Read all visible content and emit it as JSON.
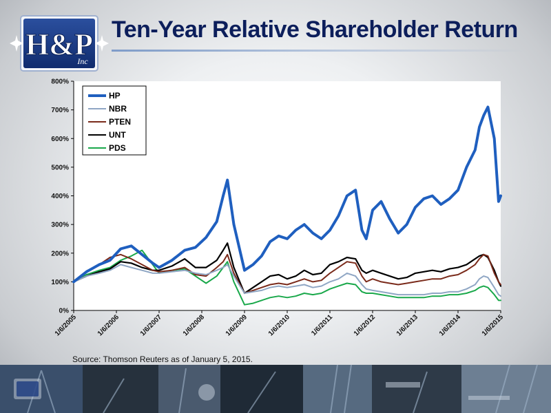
{
  "slide": {
    "title": "Ten-Year Relative Shareholder Return",
    "source": "Source: Thomson Reuters as of January 5, 2015.",
    "logo_text": "H&P",
    "logo_sub": "Inc"
  },
  "colors": {
    "title": "#0c1e5b",
    "HP": "#1f5fbf",
    "NBR": "#8fa6c4",
    "PTEN": "#7a2a1a",
    "UNT": "#000000",
    "PDS": "#19a84a"
  },
  "chart_data": {
    "type": "line",
    "title": "",
    "xlabel": "",
    "ylabel": "",
    "ylim": [
      0,
      800
    ],
    "y_ticks": [
      "0%",
      "100%",
      "200%",
      "300%",
      "400%",
      "500%",
      "600%",
      "700%",
      "800%"
    ],
    "y_tick_values": [
      0,
      100,
      200,
      300,
      400,
      500,
      600,
      700,
      800
    ],
    "x_ticks": [
      "1/6/2005",
      "1/6/2006",
      "1/6/2007",
      "1/6/2008",
      "1/6/2009",
      "1/6/2010",
      "1/6/2011",
      "1/6/2012",
      "1/6/2013",
      "1/6/2014",
      "1/6/2015"
    ],
    "x_tick_values": [
      2005.0,
      2006.0,
      2007.0,
      2008.0,
      2009.0,
      2010.0,
      2011.0,
      2012.0,
      2013.0,
      2014.0,
      2015.0
    ],
    "grid": false,
    "legend_position": "top-left",
    "series": [
      {
        "name": "HP",
        "x": [
          2005.0,
          2005.3,
          2005.6,
          2005.85,
          2006.1,
          2006.35,
          2006.6,
          2006.85,
          2007.0,
          2007.3,
          2007.6,
          2007.85,
          2008.1,
          2008.35,
          2008.5,
          2008.6,
          2008.75,
          2009.0,
          2009.2,
          2009.4,
          2009.6,
          2009.8,
          2010.0,
          2010.2,
          2010.4,
          2010.6,
          2010.8,
          2011.0,
          2011.2,
          2011.4,
          2011.6,
          2011.75,
          2011.85,
          2012.0,
          2012.2,
          2012.4,
          2012.6,
          2012.8,
          2013.0,
          2013.2,
          2013.4,
          2013.6,
          2013.8,
          2014.0,
          2014.2,
          2014.4,
          2014.5,
          2014.6,
          2014.7,
          2014.85,
          2014.95,
          2015.0
        ],
        "values": [
          100,
          135,
          160,
          175,
          215,
          225,
          195,
          165,
          150,
          175,
          210,
          220,
          255,
          310,
          400,
          455,
          300,
          140,
          160,
          190,
          240,
          260,
          250,
          280,
          300,
          270,
          250,
          280,
          330,
          400,
          420,
          280,
          250,
          350,
          380,
          320,
          270,
          300,
          360,
          390,
          400,
          370,
          390,
          420,
          500,
          560,
          640,
          680,
          710,
          600,
          380,
          400
        ]
      },
      {
        "name": "NBR",
        "x": [
          2005.0,
          2005.3,
          2005.6,
          2005.85,
          2006.1,
          2006.35,
          2006.6,
          2006.85,
          2007.0,
          2007.3,
          2007.6,
          2007.85,
          2008.1,
          2008.35,
          2008.5,
          2008.6,
          2008.75,
          2009.0,
          2009.2,
          2009.4,
          2009.6,
          2009.8,
          2010.0,
          2010.2,
          2010.4,
          2010.6,
          2010.8,
          2011.0,
          2011.2,
          2011.4,
          2011.6,
          2011.75,
          2011.85,
          2012.0,
          2012.2,
          2012.4,
          2012.6,
          2012.8,
          2013.0,
          2013.2,
          2013.4,
          2013.6,
          2013.8,
          2014.0,
          2014.2,
          2014.4,
          2014.5,
          2014.6,
          2014.7,
          2014.85,
          2014.95,
          2015.0
        ],
        "values": [
          100,
          120,
          130,
          140,
          160,
          150,
          140,
          130,
          130,
          135,
          140,
          130,
          125,
          140,
          150,
          160,
          120,
          60,
          65,
          70,
          80,
          85,
          80,
          85,
          90,
          80,
          85,
          100,
          110,
          130,
          120,
          90,
          75,
          70,
          65,
          60,
          55,
          55,
          55,
          55,
          60,
          60,
          65,
          65,
          75,
          90,
          110,
          120,
          115,
          80,
          55,
          50
        ]
      },
      {
        "name": "PTEN",
        "x": [
          2005.0,
          2005.3,
          2005.6,
          2005.85,
          2006.1,
          2006.35,
          2006.6,
          2006.85,
          2007.0,
          2007.3,
          2007.6,
          2007.85,
          2008.1,
          2008.35,
          2008.5,
          2008.6,
          2008.75,
          2009.0,
          2009.2,
          2009.4,
          2009.6,
          2009.8,
          2010.0,
          2010.2,
          2010.4,
          2010.6,
          2010.8,
          2011.0,
          2011.2,
          2011.4,
          2011.6,
          2011.75,
          2011.85,
          2012.0,
          2012.2,
          2012.4,
          2012.6,
          2012.8,
          2013.0,
          2013.2,
          2013.4,
          2013.6,
          2013.8,
          2014.0,
          2014.2,
          2014.4,
          2014.5,
          2014.6,
          2014.7,
          2014.85,
          2014.95,
          2015.0
        ],
        "values": [
          100,
          135,
          160,
          185,
          195,
          180,
          160,
          140,
          135,
          140,
          150,
          125,
          120,
          150,
          170,
          195,
          130,
          60,
          70,
          80,
          90,
          95,
          90,
          100,
          110,
          100,
          105,
          130,
          150,
          170,
          165,
          120,
          100,
          110,
          100,
          95,
          90,
          95,
          100,
          105,
          110,
          110,
          120,
          125,
          140,
          160,
          180,
          195,
          190,
          130,
          100,
          90
        ]
      },
      {
        "name": "UNT",
        "x": [
          2005.0,
          2005.3,
          2005.6,
          2005.85,
          2006.1,
          2006.35,
          2006.6,
          2006.85,
          2007.0,
          2007.3,
          2007.6,
          2007.85,
          2008.1,
          2008.35,
          2008.5,
          2008.6,
          2008.75,
          2009.0,
          2009.2,
          2009.4,
          2009.6,
          2009.8,
          2010.0,
          2010.2,
          2010.4,
          2010.6,
          2010.8,
          2011.0,
          2011.2,
          2011.4,
          2011.6,
          2011.75,
          2011.85,
          2012.0,
          2012.2,
          2012.4,
          2012.6,
          2012.8,
          2013.0,
          2013.2,
          2013.4,
          2013.6,
          2013.8,
          2014.0,
          2014.2,
          2014.4,
          2014.5,
          2014.6,
          2014.7,
          2014.85,
          2014.95,
          2015.0
        ],
        "values": [
          100,
          120,
          135,
          145,
          170,
          165,
          150,
          140,
          140,
          155,
          180,
          150,
          150,
          175,
          210,
          235,
          150,
          60,
          80,
          100,
          120,
          125,
          110,
          120,
          140,
          125,
          130,
          160,
          170,
          185,
          180,
          140,
          130,
          140,
          130,
          120,
          110,
          115,
          130,
          135,
          140,
          135,
          145,
          150,
          160,
          180,
          190,
          195,
          185,
          140,
          100,
          85
        ]
      },
      {
        "name": "PDS",
        "x": [
          2005.0,
          2005.3,
          2005.6,
          2005.85,
          2006.1,
          2006.35,
          2006.6,
          2006.85,
          2007.0,
          2007.3,
          2007.6,
          2007.85,
          2008.1,
          2008.35,
          2008.5,
          2008.6,
          2008.75,
          2009.0,
          2009.2,
          2009.4,
          2009.6,
          2009.8,
          2010.0,
          2010.2,
          2010.4,
          2010.6,
          2010.8,
          2011.0,
          2011.2,
          2011.4,
          2011.6,
          2011.75,
          2011.85,
          2012.0,
          2012.2,
          2012.4,
          2012.6,
          2012.8,
          2013.0,
          2013.2,
          2013.4,
          2013.6,
          2013.8,
          2014.0,
          2014.2,
          2014.4,
          2014.5,
          2014.6,
          2014.7,
          2014.85,
          2014.95,
          2015.0
        ],
        "values": [
          100,
          125,
          140,
          150,
          175,
          190,
          210,
          160,
          130,
          140,
          145,
          120,
          95,
          120,
          150,
          170,
          100,
          20,
          25,
          35,
          45,
          50,
          45,
          50,
          60,
          55,
          60,
          75,
          85,
          95,
          90,
          65,
          60,
          60,
          55,
          50,
          45,
          45,
          45,
          45,
          50,
          50,
          55,
          55,
          60,
          70,
          80,
          85,
          80,
          55,
          35,
          35
        ]
      }
    ]
  }
}
